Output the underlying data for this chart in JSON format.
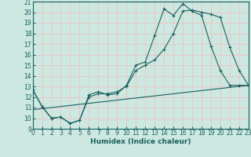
{
  "title": "",
  "xlabel": "Humidex (Indice chaleur)",
  "xlim": [
    0,
    23
  ],
  "ylim": [
    9,
    21
  ],
  "xticks": [
    0,
    1,
    2,
    3,
    4,
    5,
    6,
    7,
    8,
    9,
    10,
    11,
    12,
    13,
    14,
    15,
    16,
    17,
    18,
    19,
    20,
    21,
    22,
    23
  ],
  "yticks": [
    9,
    10,
    11,
    12,
    13,
    14,
    15,
    16,
    17,
    18,
    19,
    20,
    21
  ],
  "background_color": "#cce8e0",
  "grid_color": "#e8c8c8",
  "line_color": "#1a6060",
  "line1_x": [
    0,
    1,
    2,
    3,
    4,
    5,
    6,
    7,
    8,
    9,
    10,
    11,
    12,
    13,
    14,
    15,
    16,
    17,
    18,
    19,
    20,
    21,
    22,
    23
  ],
  "line1_y": [
    12.7,
    11.1,
    10.0,
    10.1,
    9.5,
    9.8,
    12.2,
    12.5,
    12.2,
    12.3,
    13.1,
    15.0,
    15.3,
    17.8,
    20.3,
    19.7,
    20.8,
    20.1,
    19.7,
    16.8,
    14.5,
    13.1,
    13.1,
    13.1
  ],
  "line2_x": [
    0,
    1,
    2,
    3,
    4,
    5,
    6,
    7,
    8,
    9,
    10,
    11,
    12,
    13,
    14,
    15,
    16,
    17,
    18,
    19,
    20,
    21,
    22,
    23
  ],
  "line2_y": [
    12.7,
    11.1,
    10.0,
    10.1,
    9.5,
    9.8,
    12.0,
    12.3,
    12.3,
    12.5,
    13.0,
    14.5,
    15.0,
    15.5,
    16.5,
    18.0,
    20.1,
    20.2,
    20.0,
    19.8,
    19.5,
    16.7,
    14.5,
    13.1
  ],
  "line3_x": [
    0,
    23
  ],
  "line3_y": [
    10.8,
    13.1
  ]
}
